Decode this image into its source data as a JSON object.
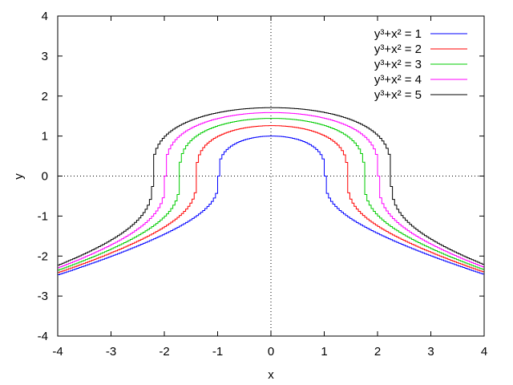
{
  "chart_data": {
    "type": "line",
    "xlabel": "x",
    "ylabel": "y",
    "xlim": [
      -4,
      4
    ],
    "ylim": [
      -4,
      4
    ],
    "xticks": [
      "-4",
      "-3",
      "-2",
      "-1",
      "0",
      "1",
      "2",
      "3",
      "4"
    ],
    "yticks": [
      "-4",
      "-3",
      "-2",
      "-1",
      "0",
      "1",
      "2",
      "3",
      "4"
    ],
    "zero_axes": "dotted",
    "legend_position": "top-right",
    "series": [
      {
        "name": "y³+x² = 1",
        "color": "#0000ff",
        "c": 1
      },
      {
        "name": "y³+x² = 2",
        "color": "#ff0000",
        "c": 2
      },
      {
        "name": "y³+x² = 3",
        "color": "#00cc00",
        "c": 3
      },
      {
        "name": "y³+x² = 4",
        "color": "#ff00ff",
        "c": 4
      },
      {
        "name": "y³+x² = 5",
        "color": "#000000",
        "c": 5
      }
    ]
  }
}
